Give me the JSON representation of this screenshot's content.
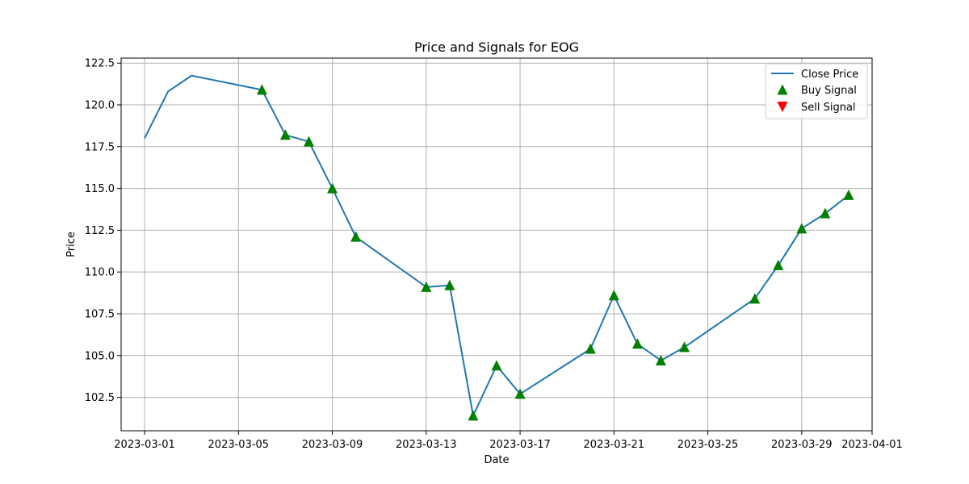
{
  "chart_data": {
    "type": "line",
    "title": "Price and Signals for EOG",
    "xlabel": "Date",
    "ylabel": "Price",
    "xlim": [
      "2023-02-28",
      "2023-04-01"
    ],
    "ylim": [
      100.5,
      122.8
    ],
    "grid": true,
    "legend_position": "top-right",
    "x_ticks": [
      "2023-03-01",
      "2023-03-05",
      "2023-03-09",
      "2023-03-13",
      "2023-03-17",
      "2023-03-21",
      "2023-03-25",
      "2023-03-29",
      "2023-04-01"
    ],
    "y_ticks": [
      "102.5",
      "105.0",
      "107.5",
      "110.0",
      "112.5",
      "115.0",
      "117.5",
      "120.0",
      "122.5"
    ],
    "series": [
      {
        "name": "Close Price",
        "kind": "line",
        "color": "#1f77b4",
        "points": [
          {
            "x": "2023-03-01",
            "y": 118.0
          },
          {
            "x": "2023-03-02",
            "y": 120.8
          },
          {
            "x": "2023-03-03",
            "y": 121.75
          },
          {
            "x": "2023-03-06",
            "y": 120.9
          },
          {
            "x": "2023-03-07",
            "y": 118.2
          },
          {
            "x": "2023-03-08",
            "y": 117.8
          },
          {
            "x": "2023-03-09",
            "y": 115.0
          },
          {
            "x": "2023-03-10",
            "y": 112.1
          },
          {
            "x": "2023-03-13",
            "y": 109.1
          },
          {
            "x": "2023-03-14",
            "y": 109.2
          },
          {
            "x": "2023-03-15",
            "y": 101.4
          },
          {
            "x": "2023-03-16",
            "y": 104.4
          },
          {
            "x": "2023-03-17",
            "y": 102.7
          },
          {
            "x": "2023-03-20",
            "y": 105.4
          },
          {
            "x": "2023-03-21",
            "y": 108.6
          },
          {
            "x": "2023-03-22",
            "y": 105.7
          },
          {
            "x": "2023-03-23",
            "y": 104.7
          },
          {
            "x": "2023-03-24",
            "y": 105.5
          },
          {
            "x": "2023-03-27",
            "y": 108.4
          },
          {
            "x": "2023-03-28",
            "y": 110.4
          },
          {
            "x": "2023-03-29",
            "y": 112.6
          },
          {
            "x": "2023-03-30",
            "y": 113.5
          },
          {
            "x": "2023-03-31",
            "y": 114.6
          }
        ]
      },
      {
        "name": "Buy Signal",
        "kind": "marker-up",
        "color": "#008000",
        "points": [
          {
            "x": "2023-03-06",
            "y": 120.9
          },
          {
            "x": "2023-03-07",
            "y": 118.2
          },
          {
            "x": "2023-03-08",
            "y": 117.8
          },
          {
            "x": "2023-03-09",
            "y": 115.0
          },
          {
            "x": "2023-03-10",
            "y": 112.1
          },
          {
            "x": "2023-03-13",
            "y": 109.1
          },
          {
            "x": "2023-03-14",
            "y": 109.2
          },
          {
            "x": "2023-03-15",
            "y": 101.4
          },
          {
            "x": "2023-03-16",
            "y": 104.4
          },
          {
            "x": "2023-03-17",
            "y": 102.7
          },
          {
            "x": "2023-03-20",
            "y": 105.4
          },
          {
            "x": "2023-03-21",
            "y": 108.6
          },
          {
            "x": "2023-03-22",
            "y": 105.7
          },
          {
            "x": "2023-03-23",
            "y": 104.7
          },
          {
            "x": "2023-03-24",
            "y": 105.5
          },
          {
            "x": "2023-03-27",
            "y": 108.4
          },
          {
            "x": "2023-03-28",
            "y": 110.4
          },
          {
            "x": "2023-03-29",
            "y": 112.6
          },
          {
            "x": "2023-03-30",
            "y": 113.5
          },
          {
            "x": "2023-03-31",
            "y": 114.6
          }
        ]
      },
      {
        "name": "Sell Signal",
        "kind": "marker-down",
        "color": "#ff0000",
        "points": []
      }
    ]
  }
}
